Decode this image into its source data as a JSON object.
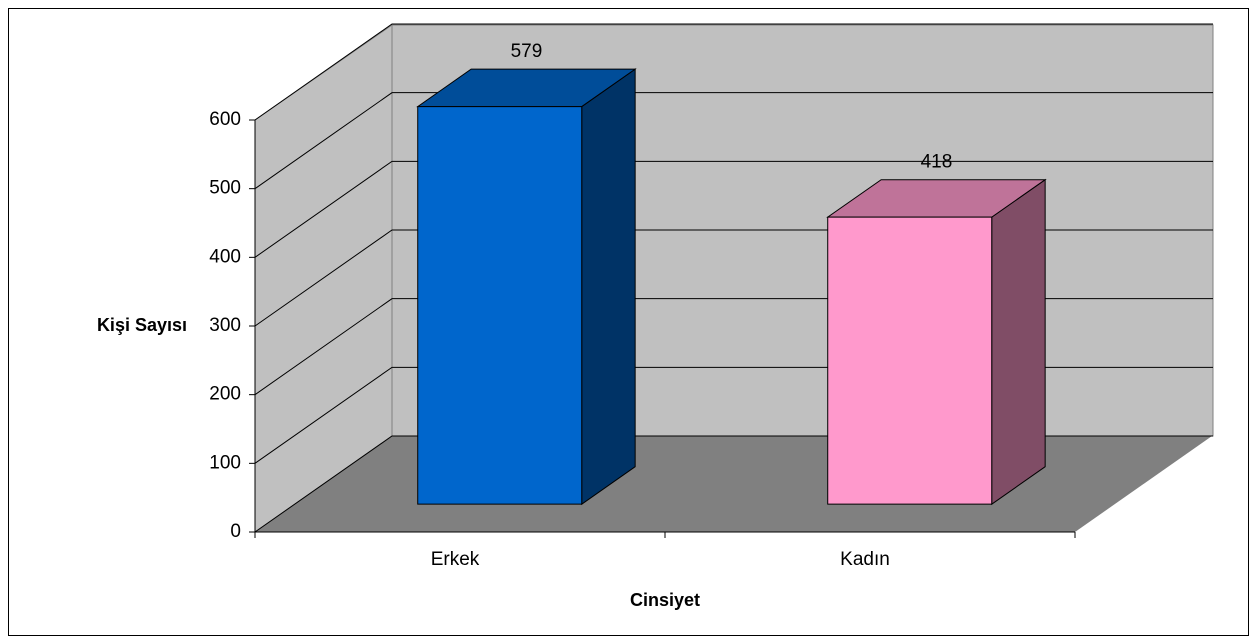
{
  "chart_data": {
    "type": "bar3d",
    "categories": [
      "Erkek",
      "Kadın"
    ],
    "values": [
      579,
      418
    ],
    "colors": [
      "#0066cc",
      "#ff99cc"
    ],
    "ylim": [
      0,
      600
    ],
    "yticks": [
      0,
      100,
      200,
      300,
      400,
      500,
      600
    ],
    "ylabel": "Kişi Sayısı",
    "xlabel": "Cinsiyet",
    "grid": true
  }
}
